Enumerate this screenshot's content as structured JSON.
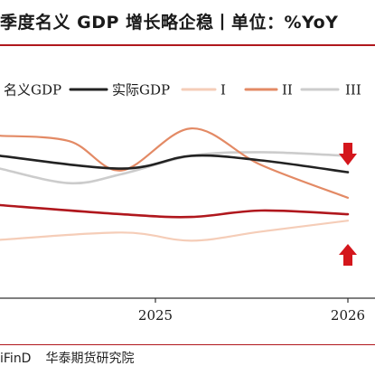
{
  "title": "季度名义 GDP 增长略企稳丨单位：%YoY",
  "source": {
    "left": "iFinD",
    "right": "华泰期货研究院"
  },
  "colors": {
    "accent_red": "#b0171d",
    "arrow_red": "#d4161c"
  },
  "chart_data": {
    "type": "line",
    "x_ticks": [
      "2025",
      "2026"
    ],
    "x_range": [
      "2024-Q2",
      "2026-Q1"
    ],
    "ylim": [
      0,
      10
    ],
    "grid": false,
    "legend_placement": "top",
    "series": [
      {
        "name": "名义GDP",
        "color": "#b0171d",
        "points": [
          [
            0.0,
            5.1
          ],
          [
            0.35,
            4.6
          ],
          [
            0.55,
            4.45
          ],
          [
            0.75,
            4.8
          ],
          [
            1.0,
            4.6
          ]
        ]
      },
      {
        "name": "实际GDP",
        "color": "#222222",
        "points": [
          [
            0.0,
            7.8
          ],
          [
            0.35,
            7.1
          ],
          [
            0.55,
            7.8
          ],
          [
            0.75,
            7.55
          ],
          [
            1.0,
            6.9
          ]
        ]
      },
      {
        "name": "I",
        "color": "#f5cdb8",
        "points": [
          [
            0.0,
            3.2
          ],
          [
            0.35,
            3.6
          ],
          [
            0.55,
            3.15
          ],
          [
            0.75,
            3.65
          ],
          [
            1.0,
            4.25
          ]
        ]
      },
      {
        "name": "II",
        "color": "#e38a65",
        "points": [
          [
            0.0,
            8.9
          ],
          [
            0.2,
            8.6
          ],
          [
            0.35,
            7.0
          ],
          [
            0.55,
            9.3
          ],
          [
            0.75,
            7.3
          ],
          [
            1.0,
            5.5
          ]
        ]
      },
      {
        "name": "III",
        "color": "#cccccc",
        "points": [
          [
            0.0,
            7.1
          ],
          [
            0.2,
            6.3
          ],
          [
            0.35,
            6.8
          ],
          [
            0.55,
            7.8
          ],
          [
            0.75,
            8.0
          ],
          [
            1.0,
            7.8
          ]
        ]
      }
    ],
    "markers": [
      {
        "type": "arrow-down",
        "series": "实际GDP",
        "x": 1.0
      },
      {
        "type": "arrow-up",
        "series": "名义GDP",
        "x": 1.0
      }
    ]
  }
}
